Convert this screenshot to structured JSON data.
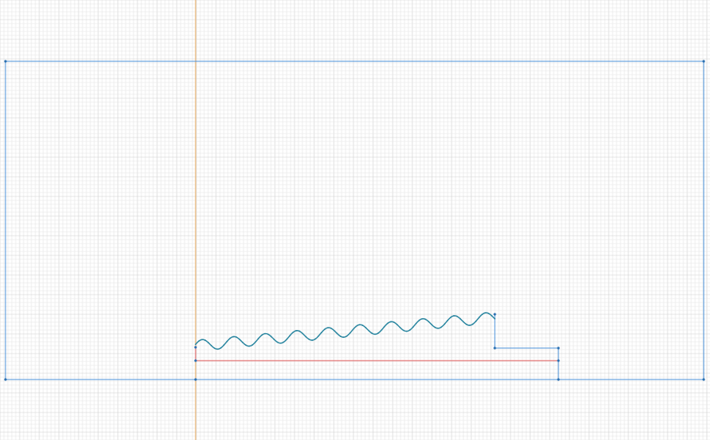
{
  "colors": {
    "background": "#ffffff",
    "grid_minor": "#e4e4e4",
    "grid_major": "#cfcfcf",
    "boundary_blue": "#4a90d9",
    "axis_orange": "#e8a85a",
    "axis_red": "#e05555",
    "wave_teal": "#2a86a0",
    "node_dot": "#2a6fb0"
  },
  "sketch": {
    "wave_periods": 9.5,
    "wave_amplitude_fraction": 0.5
  }
}
